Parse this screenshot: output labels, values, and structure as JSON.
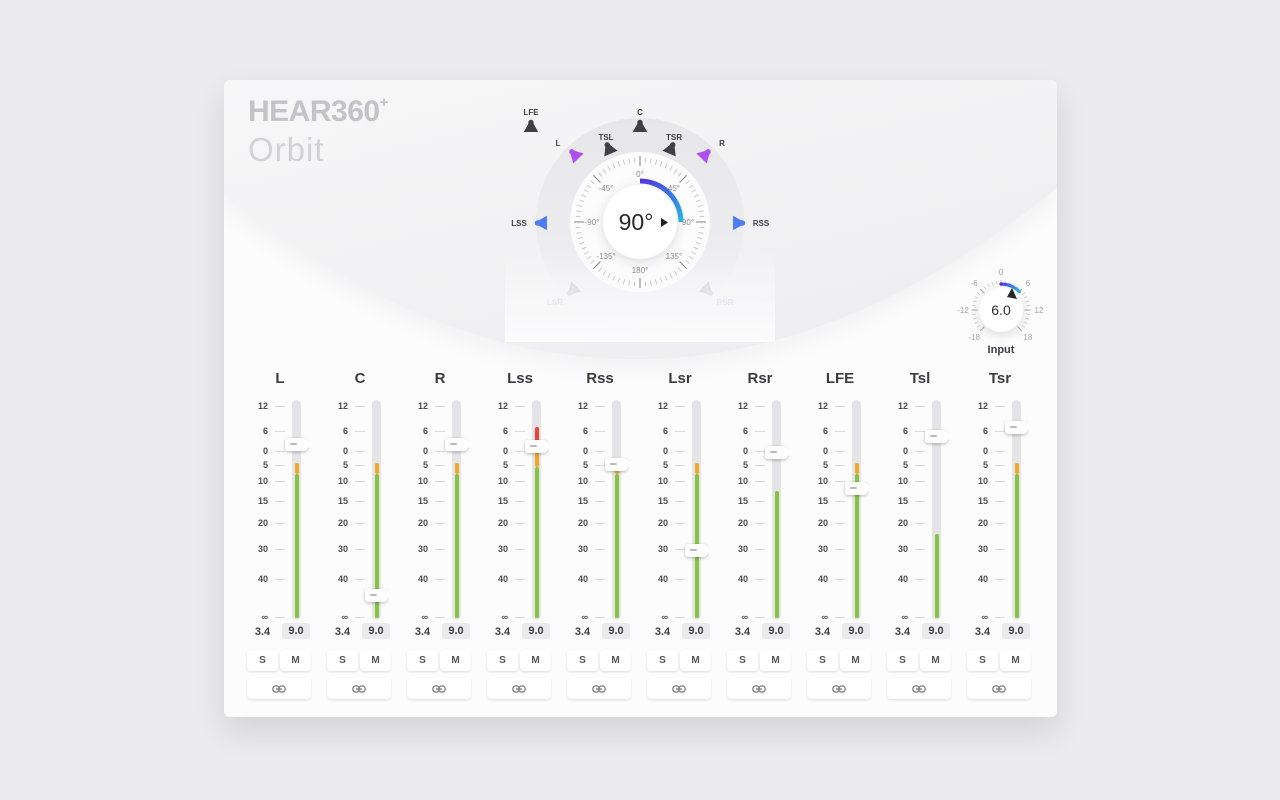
{
  "logo": {
    "brand_a": "HEAR",
    "brand_b": "360",
    "brand_sup": "+",
    "product": "Orbit"
  },
  "dial": {
    "value": "90°",
    "degree_labels": [
      "0°",
      "45°",
      "90°",
      "135°",
      "180°",
      "-135°",
      "-90°",
      "-45°"
    ],
    "speakers": [
      {
        "id": "lfe",
        "label": "LFE",
        "state": "dark"
      },
      {
        "id": "c",
        "label": "C",
        "state": "dark"
      },
      {
        "id": "tsl",
        "label": "TSL",
        "state": "dark"
      },
      {
        "id": "tsr",
        "label": "TSR",
        "state": "dark"
      },
      {
        "id": "l",
        "label": "L",
        "state": "purple"
      },
      {
        "id": "r",
        "label": "R",
        "state": "purple"
      },
      {
        "id": "lss",
        "label": "LSS",
        "state": "blue"
      },
      {
        "id": "rss",
        "label": "RSS",
        "state": "blue"
      },
      {
        "id": "lsr",
        "label": "LSR",
        "state": "inactive"
      },
      {
        "id": "rsr",
        "label": "RSR",
        "state": "inactive"
      }
    ]
  },
  "input_knob": {
    "value": "6.0",
    "label": "Input",
    "tick_labels": [
      "0",
      "6",
      "12",
      "18",
      "-18",
      "-12",
      "-6"
    ]
  },
  "fader_scale": [
    "12",
    "6",
    "0",
    "5",
    "10",
    "15",
    "20",
    "30",
    "40",
    "∞"
  ],
  "solo_label": "S",
  "mute_label": "M",
  "channels": [
    {
      "name": "L",
      "peak": "3.4",
      "gain": "9.0",
      "fader": 44,
      "meter": [
        [
          "orange",
          63,
          74
        ],
        [
          "green",
          74,
          218
        ]
      ]
    },
    {
      "name": "C",
      "peak": "3.4",
      "gain": "9.0",
      "fader": 195,
      "meter": [
        [
          "orange",
          63,
          74
        ],
        [
          "green",
          74,
          218
        ]
      ]
    },
    {
      "name": "R",
      "peak": "3.4",
      "gain": "9.0",
      "fader": 44,
      "meter": [
        [
          "orange",
          63,
          74
        ],
        [
          "green",
          74,
          218
        ]
      ]
    },
    {
      "name": "Lss",
      "peak": "3.4",
      "gain": "9.0",
      "fader": 46,
      "meter": [
        [
          "red",
          27,
          47
        ],
        [
          "orange",
          47,
          67
        ],
        [
          "green",
          67,
          218
        ]
      ]
    },
    {
      "name": "Rss",
      "peak": "3.4",
      "gain": "9.0",
      "fader": 64,
      "meter": [
        [
          "orange",
          63,
          74
        ],
        [
          "green",
          74,
          218
        ]
      ]
    },
    {
      "name": "Lsr",
      "peak": "3.4",
      "gain": "9.0",
      "fader": 150,
      "meter": [
        [
          "orange",
          63,
          74
        ],
        [
          "green",
          74,
          218
        ]
      ]
    },
    {
      "name": "Rsr",
      "peak": "3.4",
      "gain": "9.0",
      "fader": 52,
      "meter": [
        [
          "green",
          91,
          218
        ]
      ]
    },
    {
      "name": "LFE",
      "peak": "3.4",
      "gain": "9.0",
      "fader": 88,
      "meter": [
        [
          "orange",
          63,
          74
        ],
        [
          "green",
          74,
          218
        ]
      ]
    },
    {
      "name": "Tsl",
      "peak": "3.4",
      "gain": "9.0",
      "fader": 36,
      "meter": [
        [
          "green",
          134,
          218
        ]
      ]
    },
    {
      "name": "Tsr",
      "peak": "3.4",
      "gain": "9.0",
      "fader": 27,
      "meter": [
        [
          "orange",
          63,
          74
        ],
        [
          "green",
          74,
          218
        ]
      ]
    }
  ],
  "colors": {
    "purple": "#b14ef0",
    "blue": "#4d7df2",
    "dark": "#3f3f46",
    "inactive": "#cfcfd4",
    "arc_start": "#5636e0",
    "arc_mid": "#3a7ae8",
    "arc_end": "#2ab9ee",
    "meter_green": "#85c441",
    "meter_orange": "#f5a623",
    "meter_red": "#ed4337"
  }
}
